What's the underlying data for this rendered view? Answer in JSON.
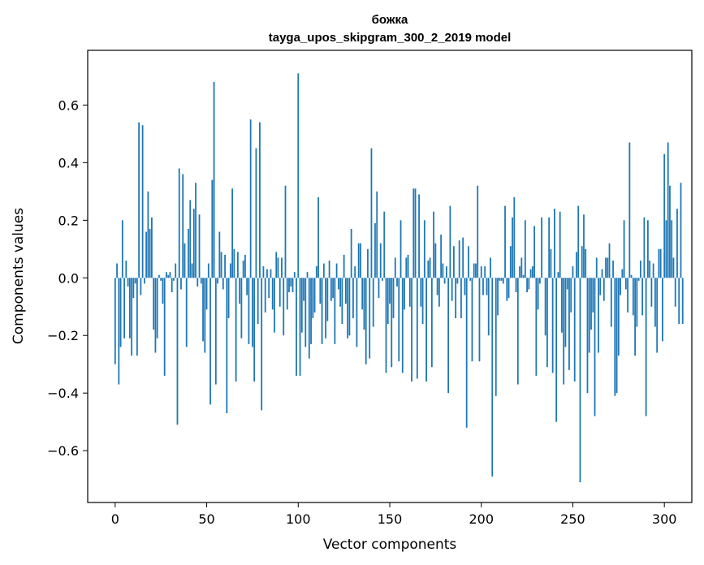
{
  "chart_data": {
    "type": "bar",
    "title": "божка",
    "subtitle": "tayga_upos_skipgram_300_2_2019 model",
    "xlabel": "Vector components",
    "ylabel": "Components values",
    "xlim": [
      -15,
      315
    ],
    "ylim": [
      -0.78,
      0.79
    ],
    "xticks": [
      0,
      50,
      100,
      150,
      200,
      250,
      300
    ],
    "xtick_labels": [
      "0",
      "50",
      "100",
      "150",
      "200",
      "250",
      "300"
    ],
    "yticks": [
      -0.6,
      -0.4,
      -0.2,
      0.0,
      0.2,
      0.4,
      0.6
    ],
    "ytick_labels": [
      "−0.6",
      "−0.4",
      "−0.2",
      "0.0",
      "0.2",
      "0.4",
      "0.6"
    ],
    "bar_color": "#1f77b4",
    "grid": false,
    "values": [
      -0.3,
      0.05,
      -0.37,
      -0.24,
      0.2,
      -0.21,
      0.06,
      -0.03,
      -0.21,
      -0.27,
      -0.07,
      -0.02,
      -0.27,
      0.54,
      -0.06,
      0.53,
      -0.02,
      0.16,
      0.3,
      0.17,
      0.21,
      -0.18,
      -0.26,
      -0.21,
      0.01,
      -0.01,
      -0.09,
      -0.34,
      0.02,
      0.01,
      0.02,
      -0.05,
      -0.01,
      0.05,
      -0.51,
      0.38,
      -0.04,
      0.36,
      0.12,
      -0.24,
      0.17,
      0.27,
      0.05,
      0.24,
      0.33,
      -0.03,
      0.22,
      -0.02,
      -0.22,
      -0.26,
      -0.11,
      0.05,
      -0.44,
      0.34,
      0.68,
      -0.37,
      -0.02,
      0.16,
      0.09,
      -0.04,
      0.08,
      -0.47,
      -0.14,
      0.05,
      0.31,
      0.1,
      -0.36,
      0.09,
      -0.09,
      -0.21,
      0.06,
      0.08,
      -0.06,
      -0.23,
      0.55,
      -0.24,
      -0.36,
      0.45,
      -0.16,
      0.54,
      -0.46,
      0.04,
      -0.12,
      0.03,
      -0.07,
      0.03,
      -0.11,
      -0.19,
      0.09,
      0.07,
      -0.1,
      0.07,
      -0.2,
      0.32,
      -0.11,
      -0.05,
      -0.03,
      -0.05,
      0.02,
      -0.34,
      0.71,
      -0.34,
      -0.19,
      -0.08,
      -0.24,
      0.02,
      -0.28,
      -0.23,
      -0.14,
      -0.12,
      0.04,
      0.28,
      -0.09,
      -0.23,
      0.05,
      -0.21,
      -0.15,
      0.06,
      -0.08,
      -0.07,
      -0.23,
      0.05,
      -0.04,
      -0.1,
      -0.16,
      0.08,
      -0.09,
      -0.21,
      -0.2,
      0.17,
      -0.14,
      0.04,
      -0.24,
      0.12,
      0.12,
      -0.11,
      -0.18,
      -0.3,
      0.1,
      -0.28,
      0.45,
      -0.17,
      0.19,
      0.3,
      -0.07,
      0.12,
      -0.01,
      0.23,
      -0.33,
      -0.16,
      -0.09,
      -0.31,
      -0.14,
      0.07,
      -0.03,
      -0.29,
      0.2,
      -0.33,
      -0.11,
      0.07,
      0.08,
      -0.1,
      -0.36,
      0.31,
      0.31,
      -0.35,
      0.29,
      -0.1,
      -0.16,
      0.2,
      -0.36,
      0.06,
      0.07,
      -0.31,
      0.23,
      0.12,
      -0.06,
      -0.1,
      0.15,
      0.05,
      -0.02,
      0.04,
      -0.4,
      0.25,
      -0.08,
      0.11,
      -0.14,
      -0.02,
      0.13,
      -0.14,
      0.14,
      -0.06,
      -0.52,
      0.11,
      -0.01,
      -0.29,
      0.05,
      0.05,
      0.32,
      -0.29,
      0.04,
      -0.06,
      0.04,
      -0.06,
      -0.2,
      0.07,
      -0.69,
      0.0,
      -0.41,
      -0.13,
      -0.01,
      -0.01,
      -0.02,
      0.25,
      -0.08,
      -0.07,
      0.11,
      0.21,
      0.28,
      -0.05,
      -0.37,
      0.04,
      0.07,
      0.01,
      0.2,
      -0.05,
      -0.04,
      0.03,
      0.04,
      0.18,
      -0.34,
      -0.11,
      -0.02,
      0.21,
      0.0,
      -0.2,
      -0.31,
      0.21,
      0.1,
      -0.33,
      0.24,
      -0.5,
      0.02,
      0.23,
      -0.19,
      -0.37,
      -0.24,
      -0.04,
      -0.32,
      -0.12,
      0.04,
      -0.36,
      0.09,
      0.25,
      -0.71,
      0.11,
      0.22,
      0.1,
      -0.4,
      -0.26,
      -0.18,
      -0.12,
      -0.48,
      0.07,
      -0.26,
      -0.06,
      0.03,
      -0.08,
      0.07,
      0.07,
      0.12,
      -0.17,
      0.06,
      -0.41,
      -0.4,
      -0.27,
      -0.06,
      0.03,
      0.2,
      -0.04,
      -0.12,
      0.47,
      0.01,
      -0.13,
      -0.27,
      -0.17,
      -0.01,
      0.06,
      -0.13,
      0.21,
      -0.48,
      0.2,
      0.06,
      -0.1,
      0.05,
      -0.17,
      -0.26,
      0.1,
      0.1,
      -0.22,
      0.43,
      0.2,
      0.47,
      0.32,
      0.2,
      0.07,
      -0.1,
      0.24,
      -0.16,
      0.33,
      -0.16
    ]
  }
}
